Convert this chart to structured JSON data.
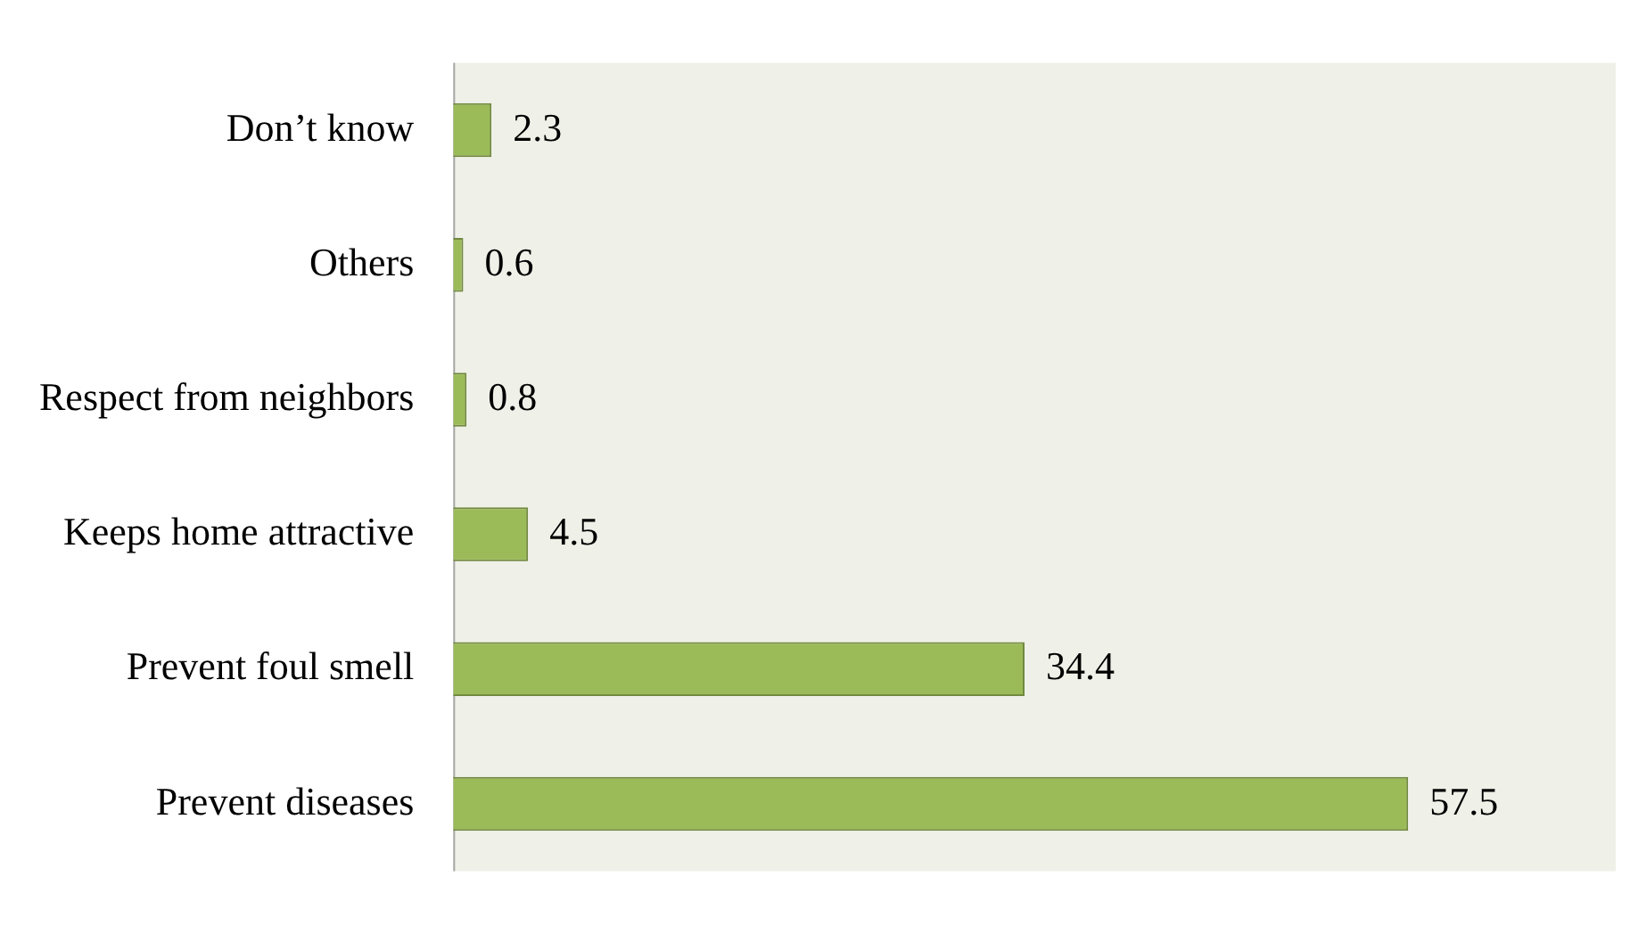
{
  "chart_data": {
    "type": "bar",
    "orientation": "horizontal",
    "categories": [
      "Don’t know",
      "Others",
      "Respect from neighbors",
      "Keeps home attractive",
      "Prevent foul smell",
      "Prevent diseases"
    ],
    "values": [
      2.3,
      0.6,
      0.8,
      4.5,
      34.4,
      57.5
    ],
    "color": "#9bbb59",
    "data_labels": true,
    "grid": false,
    "legend": false
  }
}
